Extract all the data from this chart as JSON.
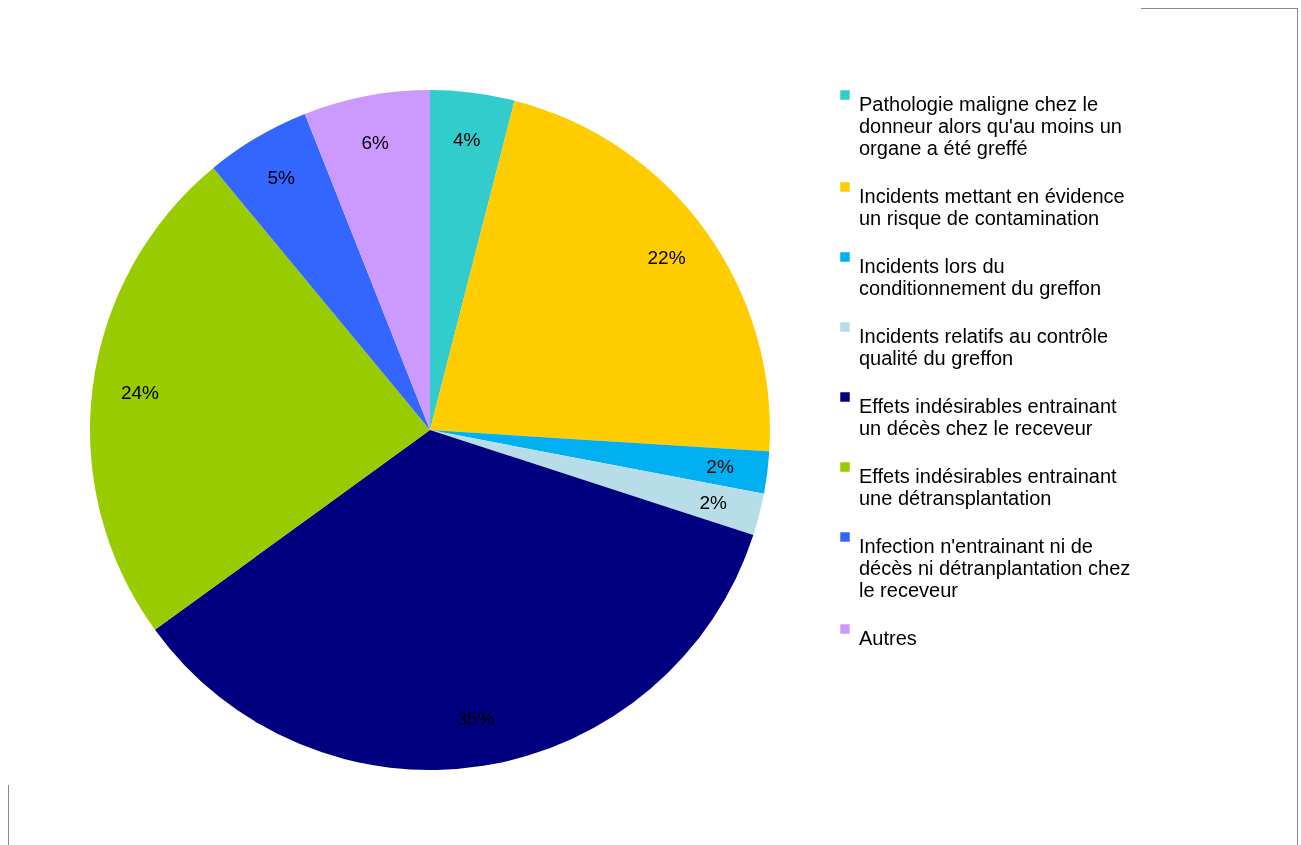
{
  "chart_data": {
    "type": "pie",
    "categories": [
      "Pathologie maligne chez le donneur alors qu'au moins un organe a été greffé",
      "Incidents mettant en évidence un risque de contamination",
      "Incidents lors du conditionnement du greffon",
      "Incidents relatifs au contrôle qualité du greffon",
      "Effets indésirables entrainant un décès chez le receveur",
      "Effets indésirables entrainant une détransplantation",
      "Infection n'entrainant ni de décès ni détranplantation chez le receveur",
      "Autres"
    ],
    "values": [
      4,
      22,
      2,
      2,
      35,
      24,
      5,
      6
    ],
    "colors": [
      "#33cccc",
      "#ffcc00",
      "#00b0f0",
      "#b7dee8",
      "#000080",
      "#99cc00",
      "#3366ff",
      "#cc99ff"
    ],
    "value_labels": [
      "4%",
      "22%",
      "2%",
      "2%",
      "35%",
      "24%",
      "5%",
      "6%"
    ],
    "legend": "right"
  }
}
